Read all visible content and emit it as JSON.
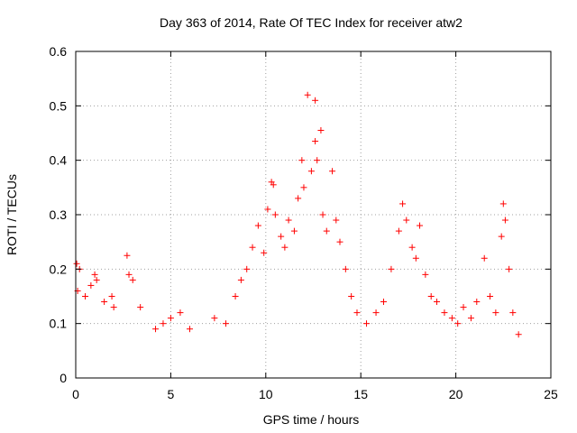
{
  "chart_data": {
    "type": "scatter",
    "title": "Day 363 of 2014, Rate Of TEC Index for receiver atw2",
    "xlabel": "GPS time / hours",
    "ylabel": "ROTI / TECUs",
    "xlim": [
      0,
      25
    ],
    "ylim": [
      0,
      0.6
    ],
    "x_ticks": [
      "0",
      "5",
      "10",
      "15",
      "20",
      "25"
    ],
    "y_ticks": [
      "0",
      "0.1",
      "0.2",
      "0.3",
      "0.4",
      "0.5",
      "0.6"
    ],
    "grid": true,
    "marker": "plus",
    "color": "#ff0000",
    "series": [
      {
        "points": [
          [
            0.05,
            0.21
          ],
          [
            0.1,
            0.16
          ],
          [
            0.2,
            0.2
          ],
          [
            0.5,
            0.15
          ],
          [
            0.8,
            0.17
          ],
          [
            1.0,
            0.19
          ],
          [
            1.1,
            0.18
          ],
          [
            1.5,
            0.14
          ],
          [
            1.9,
            0.15
          ],
          [
            2.0,
            0.13
          ],
          [
            2.7,
            0.225
          ],
          [
            2.8,
            0.19
          ],
          [
            3.0,
            0.18
          ],
          [
            3.4,
            0.13
          ],
          [
            4.2,
            0.09
          ],
          [
            4.6,
            0.1
          ],
          [
            5.0,
            0.11
          ],
          [
            5.5,
            0.12
          ],
          [
            6.0,
            0.09
          ],
          [
            7.3,
            0.11
          ],
          [
            7.9,
            0.1
          ],
          [
            8.4,
            0.15
          ],
          [
            8.7,
            0.18
          ],
          [
            9.0,
            0.2
          ],
          [
            9.3,
            0.24
          ],
          [
            9.6,
            0.28
          ],
          [
            9.9,
            0.23
          ],
          [
            10.1,
            0.31
          ],
          [
            10.3,
            0.36
          ],
          [
            10.4,
            0.355
          ],
          [
            10.5,
            0.3
          ],
          [
            10.8,
            0.26
          ],
          [
            11.0,
            0.24
          ],
          [
            11.2,
            0.29
          ],
          [
            11.5,
            0.27
          ],
          [
            11.7,
            0.33
          ],
          [
            11.9,
            0.4
          ],
          [
            12.0,
            0.35
          ],
          [
            12.2,
            0.52
          ],
          [
            12.4,
            0.38
          ],
          [
            12.6,
            0.51
          ],
          [
            12.6,
            0.435
          ],
          [
            12.7,
            0.4
          ],
          [
            12.9,
            0.455
          ],
          [
            13.0,
            0.3
          ],
          [
            13.2,
            0.27
          ],
          [
            13.5,
            0.38
          ],
          [
            13.7,
            0.29
          ],
          [
            13.9,
            0.25
          ],
          [
            14.2,
            0.2
          ],
          [
            14.5,
            0.15
          ],
          [
            14.8,
            0.12
          ],
          [
            15.3,
            0.1
          ],
          [
            15.8,
            0.12
          ],
          [
            16.2,
            0.14
          ],
          [
            16.6,
            0.2
          ],
          [
            17.0,
            0.27
          ],
          [
            17.2,
            0.32
          ],
          [
            17.4,
            0.29
          ],
          [
            17.7,
            0.24
          ],
          [
            17.9,
            0.22
          ],
          [
            18.1,
            0.28
          ],
          [
            18.4,
            0.19
          ],
          [
            18.7,
            0.15
          ],
          [
            19.0,
            0.14
          ],
          [
            19.4,
            0.12
          ],
          [
            19.8,
            0.11
          ],
          [
            20.1,
            0.1
          ],
          [
            20.4,
            0.13
          ],
          [
            20.8,
            0.11
          ],
          [
            21.1,
            0.14
          ],
          [
            21.5,
            0.22
          ],
          [
            21.8,
            0.15
          ],
          [
            22.1,
            0.12
          ],
          [
            22.4,
            0.26
          ],
          [
            22.5,
            0.32
          ],
          [
            22.6,
            0.29
          ],
          [
            22.8,
            0.2
          ],
          [
            23.0,
            0.12
          ],
          [
            23.3,
            0.08
          ]
        ]
      }
    ]
  }
}
